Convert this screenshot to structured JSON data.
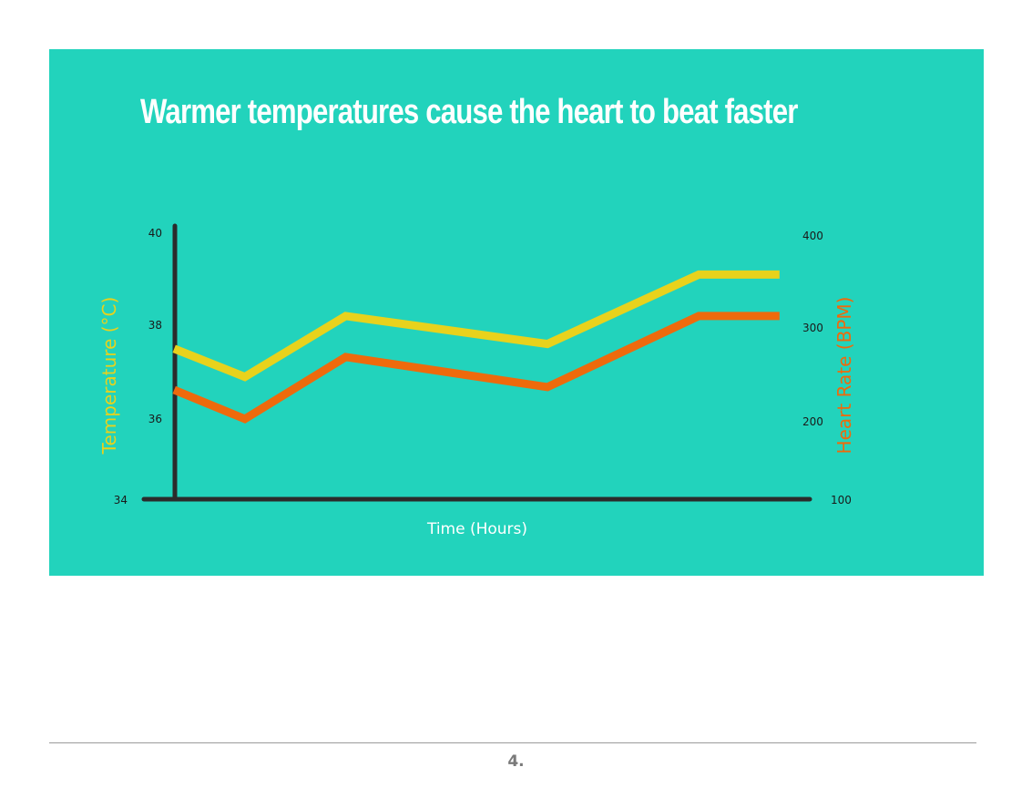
{
  "colors": {
    "background": "#22d3bc",
    "title": "#ffffff",
    "temperature": "#e8d21c",
    "heart_rate": "#ee6a0c",
    "axis": "#2b2b2b",
    "tick_text": "#1a1a1a",
    "xlabel_text": "#ffffff"
  },
  "chart_data": {
    "type": "line",
    "title": "Warmer temperatures cause the heart to beat faster",
    "xlabel": "Time (Hours)",
    "ylabel_left": "Temperature (°C)",
    "ylabel_right": "Heart Rate (BPM)",
    "y_left_ticks": [
      "34",
      "36",
      "38",
      "40"
    ],
    "y_right_ticks": [
      "100",
      "200",
      "300",
      "400"
    ],
    "x": [
      0.3,
      1.0,
      2.0,
      4.0,
      5.5,
      6.3
    ],
    "xlim": [
      0,
      6.6
    ],
    "series": [
      {
        "name": "Temperature (°C)",
        "axis": "left",
        "x": [
          0.3,
          1.0,
          2.0,
          4.0,
          5.5,
          6.3
        ],
        "values": [
          37.5,
          36.9,
          38.2,
          37.6,
          39.1,
          39.1
        ]
      },
      {
        "name": "Heart Rate (BPM)",
        "axis": "right",
        "x": [
          0.3,
          1.0,
          2.0,
          4.0,
          5.5,
          6.3
        ],
        "values": [
          234,
          203,
          269,
          237,
          313,
          313
        ]
      }
    ]
  },
  "footer": {
    "page_number": "4."
  }
}
